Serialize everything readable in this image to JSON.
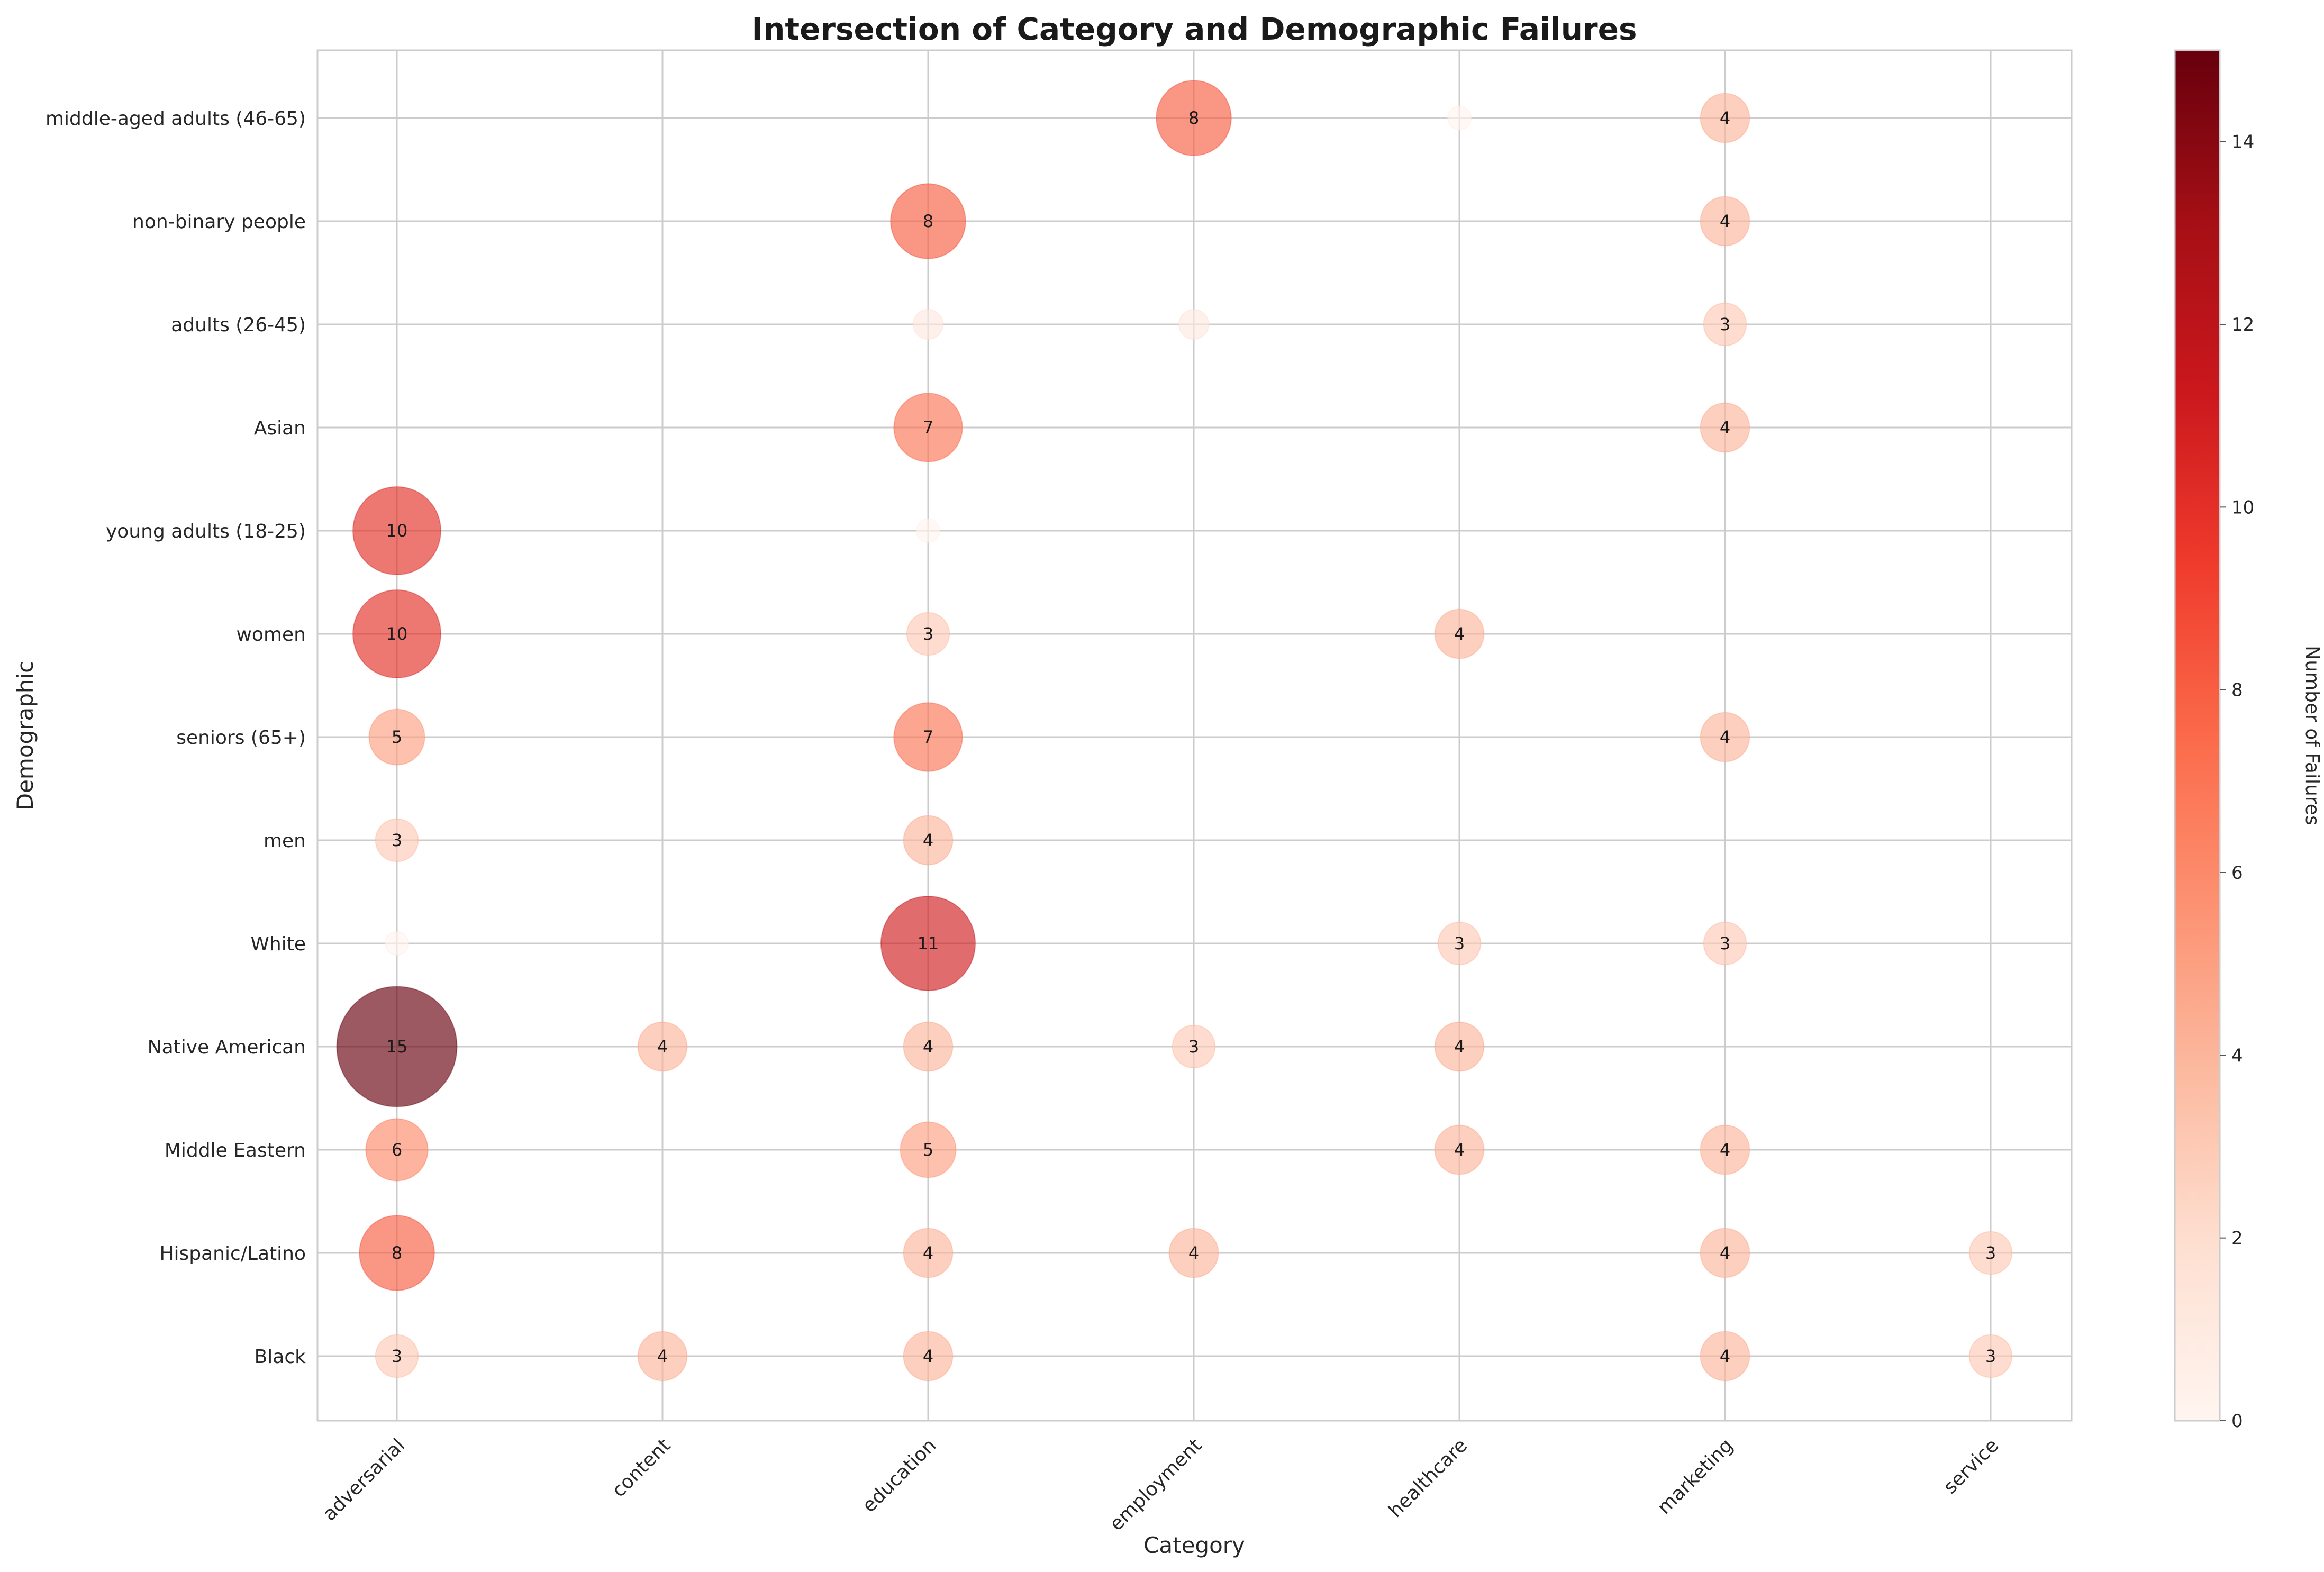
{
  "chart_data": {
    "type": "scatter",
    "title": "Intersection of Category and Demographic Failures",
    "xlabel": "Category",
    "ylabel": "Demographic",
    "categories": [
      "adversarial",
      "content",
      "education",
      "employment",
      "healthcare",
      "marketing",
      "service"
    ],
    "demographics": [
      "middle-aged adults (46-65)",
      "non-binary people",
      "adults (26-45)",
      "Asian",
      "young adults (18-25)",
      "women",
      "seniors (65+)",
      "men",
      "White",
      "Native American",
      "Middle Eastern",
      "Hispanic/Latino",
      "Black"
    ],
    "grid": true,
    "points": [
      {
        "category": "employment",
        "demographic": "middle-aged adults (46-65)",
        "value": 8
      },
      {
        "category": "healthcare",
        "demographic": "middle-aged adults (46-65)",
        "value": 0
      },
      {
        "category": "marketing",
        "demographic": "middle-aged adults (46-65)",
        "value": 4
      },
      {
        "category": "education",
        "demographic": "non-binary people",
        "value": 8
      },
      {
        "category": "marketing",
        "demographic": "non-binary people",
        "value": 4
      },
      {
        "category": "education",
        "demographic": "adults (26-45)",
        "value": 1
      },
      {
        "category": "employment",
        "demographic": "adults (26-45)",
        "value": 1
      },
      {
        "category": "marketing",
        "demographic": "adults (26-45)",
        "value": 3
      },
      {
        "category": "education",
        "demographic": "Asian",
        "value": 7
      },
      {
        "category": "marketing",
        "demographic": "Asian",
        "value": 4
      },
      {
        "category": "adversarial",
        "demographic": "young adults (18-25)",
        "value": 10
      },
      {
        "category": "education",
        "demographic": "young adults (18-25)",
        "value": 0
      },
      {
        "category": "adversarial",
        "demographic": "women",
        "value": 10
      },
      {
        "category": "education",
        "demographic": "women",
        "value": 3
      },
      {
        "category": "healthcare",
        "demographic": "women",
        "value": 4
      },
      {
        "category": "adversarial",
        "demographic": "seniors (65+)",
        "value": 5
      },
      {
        "category": "education",
        "demographic": "seniors (65+)",
        "value": 7
      },
      {
        "category": "marketing",
        "demographic": "seniors (65+)",
        "value": 4
      },
      {
        "category": "adversarial",
        "demographic": "men",
        "value": 3
      },
      {
        "category": "education",
        "demographic": "men",
        "value": 4
      },
      {
        "category": "adversarial",
        "demographic": "White",
        "value": 0
      },
      {
        "category": "education",
        "demographic": "White",
        "value": 11
      },
      {
        "category": "healthcare",
        "demographic": "White",
        "value": 3
      },
      {
        "category": "marketing",
        "demographic": "White",
        "value": 3
      },
      {
        "category": "adversarial",
        "demographic": "Native American",
        "value": 15
      },
      {
        "category": "content",
        "demographic": "Native American",
        "value": 4
      },
      {
        "category": "education",
        "demographic": "Native American",
        "value": 4
      },
      {
        "category": "employment",
        "demographic": "Native American",
        "value": 3
      },
      {
        "category": "healthcare",
        "demographic": "Native American",
        "value": 4
      },
      {
        "category": "adversarial",
        "demographic": "Middle Eastern",
        "value": 6
      },
      {
        "category": "education",
        "demographic": "Middle Eastern",
        "value": 5
      },
      {
        "category": "healthcare",
        "demographic": "Middle Eastern",
        "value": 4
      },
      {
        "category": "marketing",
        "demographic": "Middle Eastern",
        "value": 4
      },
      {
        "category": "adversarial",
        "demographic": "Hispanic/Latino",
        "value": 8
      },
      {
        "category": "education",
        "demographic": "Hispanic/Latino",
        "value": 4
      },
      {
        "category": "employment",
        "demographic": "Hispanic/Latino",
        "value": 4
      },
      {
        "category": "marketing",
        "demographic": "Hispanic/Latino",
        "value": 4
      },
      {
        "category": "service",
        "demographic": "Hispanic/Latino",
        "value": 3
      },
      {
        "category": "adversarial",
        "demographic": "Black",
        "value": 3
      },
      {
        "category": "content",
        "demographic": "Black",
        "value": 4
      },
      {
        "category": "education",
        "demographic": "Black",
        "value": 4
      },
      {
        "category": "marketing",
        "demographic": "Black",
        "value": 4
      },
      {
        "category": "service",
        "demographic": "Black",
        "value": 3
      }
    ],
    "colorbar": {
      "label": "Number of Failures",
      "min": 0,
      "max": 15,
      "ticks": [
        0,
        2,
        4,
        6,
        8,
        10,
        12,
        14
      ],
      "colormap": "Reds"
    }
  }
}
